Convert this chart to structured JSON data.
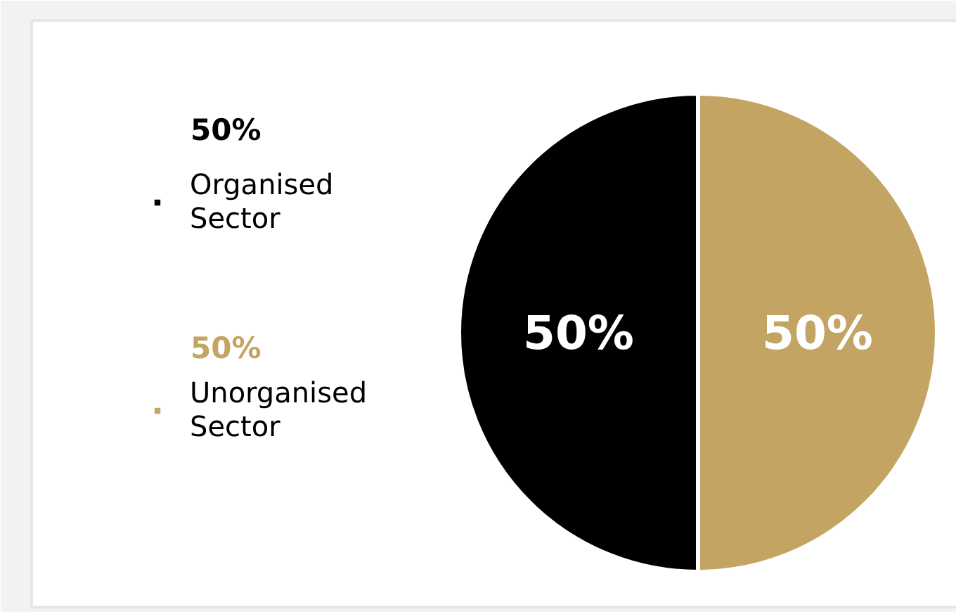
{
  "chart_data": {
    "type": "pie",
    "categories": [
      "Organised Sector",
      "Unorganised Sector"
    ],
    "values": [
      50,
      50
    ],
    "colors": [
      "#000000",
      "#c4a463"
    ],
    "value_labels": [
      "50%",
      "50%"
    ],
    "legend": "left"
  }
}
